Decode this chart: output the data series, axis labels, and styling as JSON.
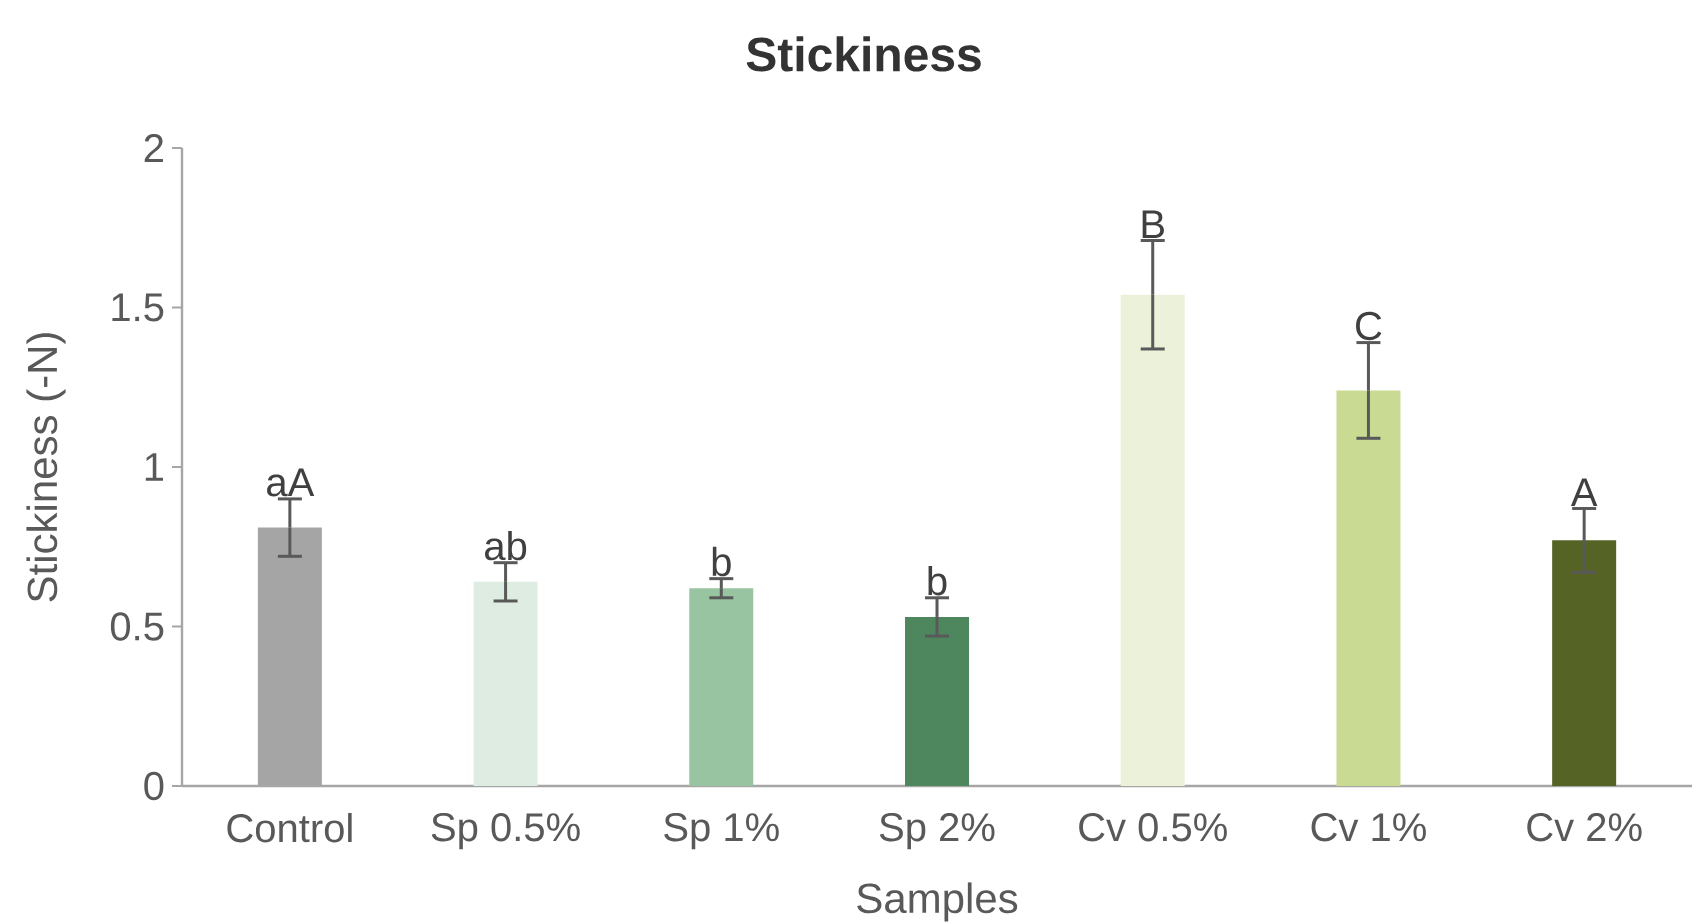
{
  "chart_data": {
    "type": "bar",
    "title": "Stickiness",
    "xlabel": "Samples",
    "ylabel": "Stickiness (-N)",
    "categories": [
      "Control",
      "Sp 0.5%",
      "Sp 1%",
      "Sp 2%",
      "Cv 0.5%",
      "Cv 1%",
      "Cv 2%"
    ],
    "values": [
      0.81,
      0.64,
      0.62,
      0.53,
      1.54,
      1.24,
      0.77
    ],
    "errors": [
      0.09,
      0.06,
      0.03,
      0.06,
      0.17,
      0.15,
      0.1
    ],
    "colors": [
      "#a5a5a5",
      "#dfece2",
      "#98c4a1",
      "#4e875d",
      "#ecf1da",
      "#c9da93",
      "#556425"
    ],
    "ylim": [
      0,
      2
    ],
    "yticks": [
      0,
      0.5,
      1,
      1.5,
      2
    ],
    "annotations": [
      {
        "text": "aA",
        "x": "Control",
        "y": 0.81
      },
      {
        "text": "ab",
        "x": "Sp 0.5%",
        "y": 0.64
      },
      {
        "text": "b",
        "x": "Sp 1%",
        "y": 0.62
      },
      {
        "text": "b",
        "x": "Sp 2%",
        "y": 0.53
      },
      {
        "text": "B",
        "x": "Cv 0.5%",
        "y": 1.54
      },
      {
        "text": "C",
        "x": "Cv 1%",
        "y": 1.24
      },
      {
        "text": "A",
        "x": "Cv 2%",
        "y": 0.77
      }
    ]
  }
}
